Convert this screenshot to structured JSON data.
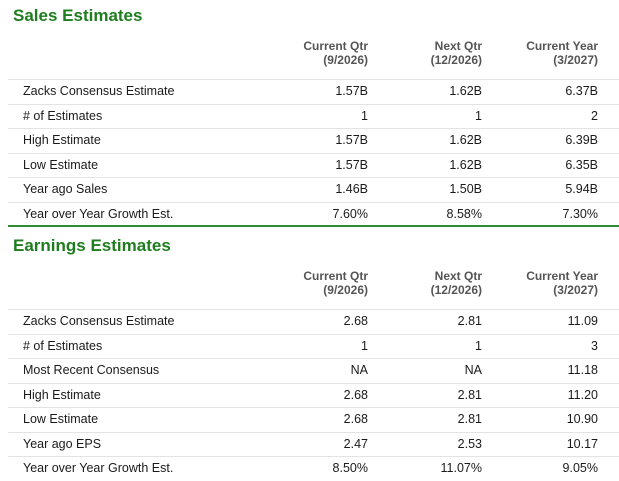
{
  "sales": {
    "title": "Sales Estimates",
    "columns": [
      {
        "line1": "Current Qtr",
        "line2": "(9/2026)"
      },
      {
        "line1": "Next Qtr",
        "line2": "(12/2026)"
      },
      {
        "line1": "Current Year",
        "line2": "(3/2027)"
      }
    ],
    "rows": [
      {
        "label": "Zacks Consensus Estimate",
        "values": [
          "1.57B",
          "1.62B",
          "6.37B"
        ]
      },
      {
        "label": "# of Estimates",
        "values": [
          "1",
          "1",
          "2"
        ]
      },
      {
        "label": "High Estimate",
        "values": [
          "1.57B",
          "1.62B",
          "6.39B"
        ]
      },
      {
        "label": "Low Estimate",
        "values": [
          "1.57B",
          "1.62B",
          "6.35B"
        ]
      },
      {
        "label": "Year ago Sales",
        "values": [
          "1.46B",
          "1.50B",
          "5.94B"
        ]
      },
      {
        "label": "Year over Year Growth Est.",
        "values": [
          "7.60%",
          "8.58%",
          "7.30%"
        ]
      }
    ]
  },
  "earnings": {
    "title": "Earnings Estimates",
    "columns": [
      {
        "line1": "Current Qtr",
        "line2": "(9/2026)"
      },
      {
        "line1": "Next Qtr",
        "line2": "(12/2026)"
      },
      {
        "line1": "Current Year",
        "line2": "(3/2027)"
      }
    ],
    "rows": [
      {
        "label": "Zacks Consensus Estimate",
        "values": [
          "2.68",
          "2.81",
          "11.09"
        ]
      },
      {
        "label": "# of Estimates",
        "values": [
          "1",
          "1",
          "3"
        ]
      },
      {
        "label": "Most Recent Consensus",
        "values": [
          "NA",
          "NA",
          "11.18"
        ]
      },
      {
        "label": "High Estimate",
        "values": [
          "2.68",
          "2.81",
          "11.20"
        ]
      },
      {
        "label": "Low Estimate",
        "values": [
          "2.68",
          "2.81",
          "10.90"
        ]
      },
      {
        "label": "Year ago EPS",
        "values": [
          "2.47",
          "2.53",
          "10.17"
        ]
      },
      {
        "label": "Year over Year Growth Est.",
        "values": [
          "8.50%",
          "11.07%",
          "9.05%"
        ]
      }
    ]
  },
  "colors": {
    "title_green": "#1e7d1e",
    "divider_green": "#2e8b2e",
    "row_border": "#e3e3e3"
  }
}
